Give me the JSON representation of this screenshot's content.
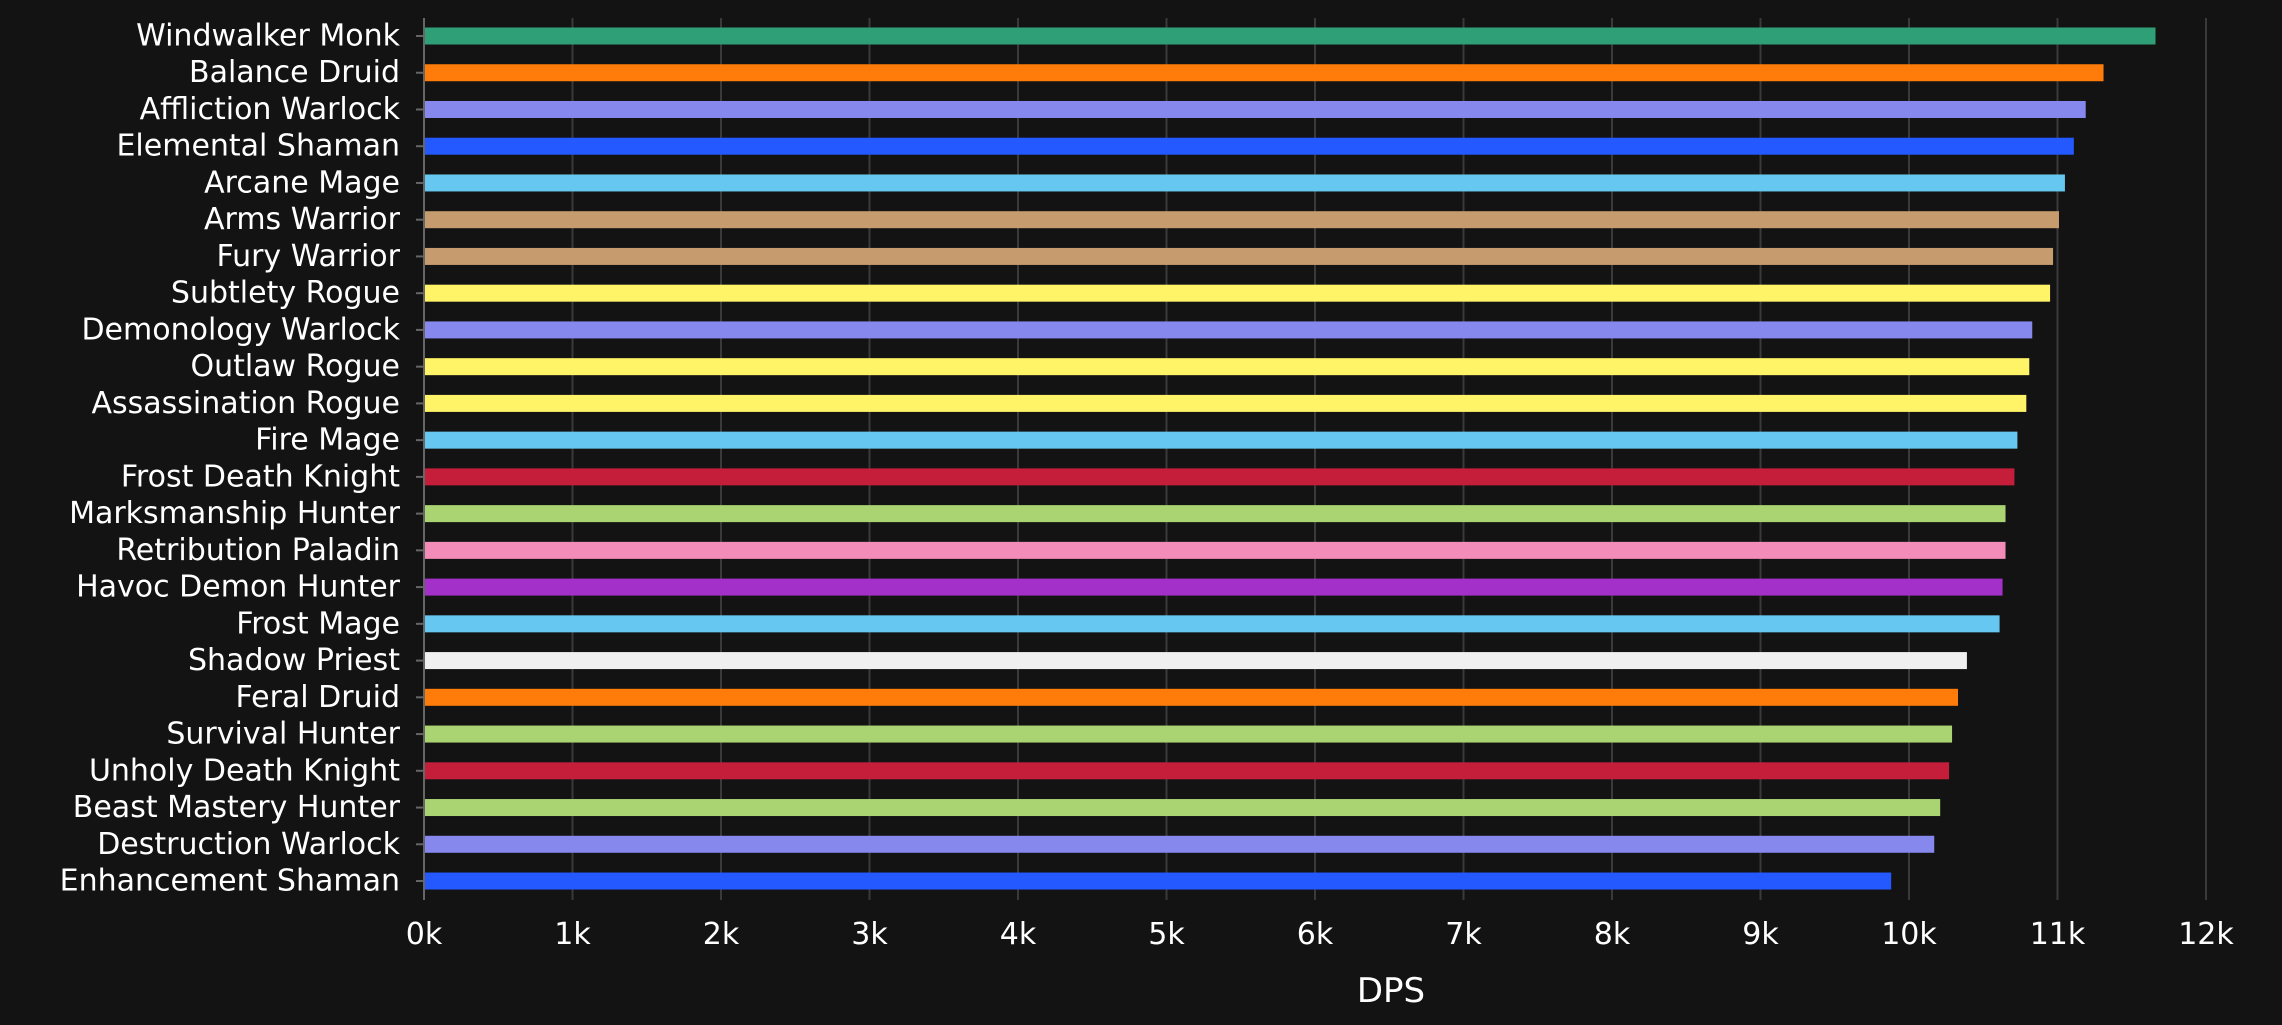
{
  "chart_data": {
    "type": "bar",
    "orientation": "horizontal",
    "title": "",
    "xlabel": "DPS",
    "ylabel": "",
    "xlim": [
      0,
      12000
    ],
    "xticks": [
      0,
      1000,
      2000,
      3000,
      4000,
      5000,
      6000,
      7000,
      8000,
      9000,
      10000,
      11000,
      12000
    ],
    "xtick_labels": [
      "0k",
      "1k",
      "2k",
      "3k",
      "4k",
      "5k",
      "6k",
      "7k",
      "8k",
      "9k",
      "10k",
      "11k",
      "12k"
    ],
    "grid": "vertical",
    "legend": "none",
    "categories": [
      "Windwalker Monk",
      "Balance Druid",
      "Affliction Warlock",
      "Elemental Shaman",
      "Arcane Mage",
      "Arms Warrior",
      "Fury Warrior",
      "Subtlety Rogue",
      "Demonology Warlock",
      "Outlaw Rogue",
      "Assassination Rogue",
      "Fire Mage",
      "Frost Death Knight",
      "Marksmanship Hunter",
      "Retribution Paladin",
      "Havoc Demon Hunter",
      "Frost Mage",
      "Shadow Priest",
      "Feral Druid",
      "Survival Hunter",
      "Unholy Death Knight",
      "Beast Mastery Hunter",
      "Destruction Warlock",
      "Enhancement Shaman"
    ],
    "values": [
      11660,
      11310,
      11190,
      11110,
      11050,
      11010,
      10970,
      10950,
      10830,
      10810,
      10790,
      10730,
      10710,
      10650,
      10650,
      10630,
      10610,
      10390,
      10330,
      10290,
      10270,
      10210,
      10170,
      9880
    ],
    "colors": [
      "#2f9f78",
      "#ff7c0a",
      "#8788ee",
      "#2459ff",
      "#66c8f0",
      "#c69b6d",
      "#c69b6d",
      "#fff468",
      "#8788ee",
      "#fff468",
      "#fff468",
      "#66c8f0",
      "#c41e3a",
      "#aad372",
      "#f48cba",
      "#a330c9",
      "#66c8f0",
      "#f0f0f0",
      "#ff7c0a",
      "#aad372",
      "#c41e3a",
      "#aad372",
      "#8788ee",
      "#2459ff"
    ]
  },
  "theme": {
    "background": "#131313",
    "text_color": "#ffffff",
    "grid_color": "#3a3a3a",
    "axis_color": "#666666"
  }
}
